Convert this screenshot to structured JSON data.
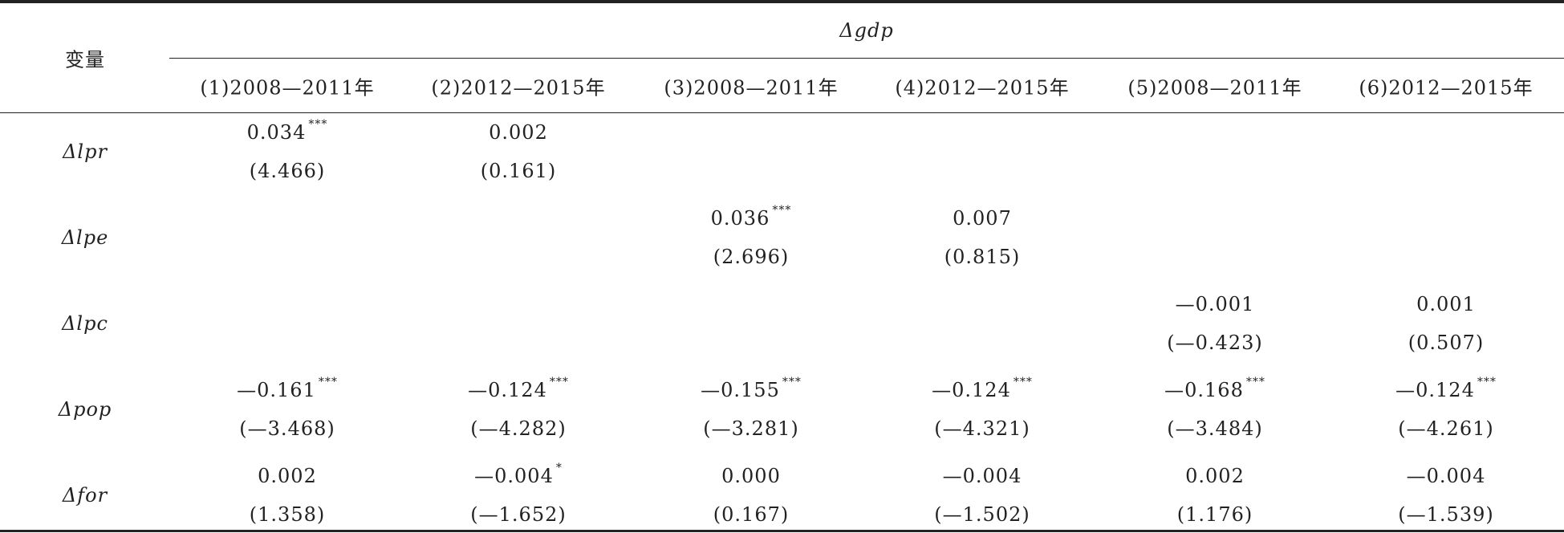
{
  "header": {
    "row_label": "变量",
    "group": "Δgdp",
    "columns": [
      "(1)2008—2011年",
      "(2)2012—2015年",
      "(3)2008—2011年",
      "(4)2012—2015年",
      "(5)2008—2011年",
      "(6)2012—2015年"
    ]
  },
  "rows": [
    {
      "label": "Δlpr",
      "cells": [
        {
          "coef": "0.034",
          "stars": "***",
          "t": "(4.466)"
        },
        {
          "coef": "0.002",
          "t": "(0.161)"
        },
        null,
        null,
        null,
        null
      ]
    },
    {
      "label": "Δlpe",
      "cells": [
        null,
        null,
        {
          "coef": "0.036",
          "stars": "***",
          "t": "(2.696)"
        },
        {
          "coef": "0.007",
          "t": "(0.815)"
        },
        null,
        null
      ]
    },
    {
      "label": "Δlpc",
      "cells": [
        null,
        null,
        null,
        null,
        {
          "coef": "—0.001",
          "t": "(—0.423)"
        },
        {
          "coef": "0.001",
          "t": "(0.507)"
        }
      ]
    },
    {
      "label": "Δpop",
      "cells": [
        {
          "coef": "—0.161",
          "stars": "***",
          "t": "(—3.468)"
        },
        {
          "coef": "—0.124",
          "stars": "***",
          "t": "(—4.282)"
        },
        {
          "coef": "—0.155",
          "stars": "***",
          "t": "(—3.281)"
        },
        {
          "coef": "—0.124",
          "stars": "***",
          "t": "(—4.321)"
        },
        {
          "coef": "—0.168",
          "stars": "***",
          "t": "(—3.484)"
        },
        {
          "coef": "—0.124",
          "stars": "***",
          "t": "(—4.261)"
        }
      ]
    },
    {
      "label": "Δfor",
      "cells": [
        {
          "coef": "0.002",
          "t": "(1.358)"
        },
        {
          "coef": "—0.004",
          "stars": "*",
          "t": "(—1.652)"
        },
        {
          "coef": "0.000",
          "t": "(0.167)"
        },
        {
          "coef": "—0.004",
          "t": "(—1.502)"
        },
        {
          "coef": "0.002",
          "t": "(1.176)"
        },
        {
          "coef": "—0.004",
          "t": "(—1.539)"
        }
      ]
    }
  ]
}
